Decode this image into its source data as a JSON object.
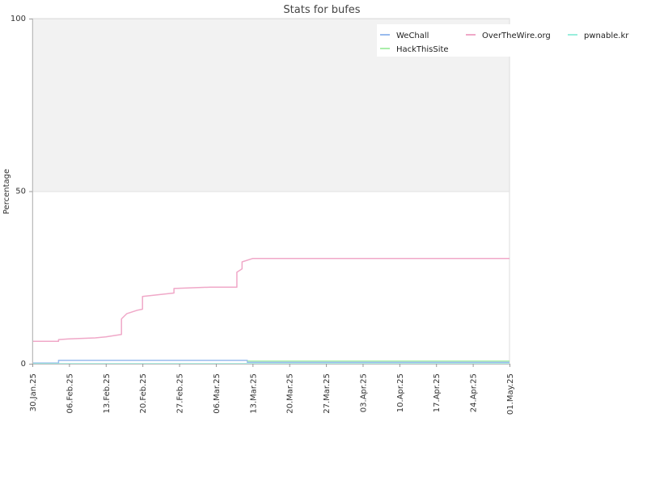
{
  "chart_data": {
    "type": "line",
    "title": "Stats for bufes",
    "xlabel": "",
    "ylabel": "Percentage",
    "ylim": [
      0,
      100
    ],
    "yticks": [
      0,
      50,
      100
    ],
    "xlim": [
      "2025-01-30",
      "2025-05-01"
    ],
    "xticks": [
      "30.Jan.25",
      "06.Feb.25",
      "13.Feb.25",
      "20.Feb.25",
      "27.Feb.25",
      "06.Mar.25",
      "13.Mar.25",
      "20.Mar.25",
      "27.Mar.25",
      "03.Apr.25",
      "10.Apr.25",
      "17.Apr.25",
      "24.Apr.25",
      "01.May.25"
    ],
    "grid": true,
    "shaded_band": [
      50,
      100
    ],
    "legend_position": "top-right",
    "series": [
      {
        "name": "WeChall",
        "color": "#99bbee",
        "points": [
          [
            "2025-01-30",
            0.2
          ],
          [
            "2025-02-04",
            0.2
          ],
          [
            "2025-02-04",
            1.0
          ],
          [
            "2025-03-12",
            1.0
          ],
          [
            "2025-03-12",
            0.4
          ],
          [
            "2025-05-01",
            0.4
          ]
        ]
      },
      {
        "name": "OverTheWire.org",
        "color": "#f0a8c8",
        "points": [
          [
            "2025-01-30",
            6.5
          ],
          [
            "2025-02-04",
            6.5
          ],
          [
            "2025-02-04",
            7.0
          ],
          [
            "2025-02-06",
            7.2
          ],
          [
            "2025-02-11",
            7.5
          ],
          [
            "2025-02-13",
            7.8
          ],
          [
            "2025-02-16",
            8.5
          ],
          [
            "2025-02-16",
            13.0
          ],
          [
            "2025-02-17",
            14.5
          ],
          [
            "2025-02-19",
            15.5
          ],
          [
            "2025-02-20",
            15.8
          ],
          [
            "2025-02-20",
            19.5
          ],
          [
            "2025-02-23",
            20.0
          ],
          [
            "2025-02-26",
            20.5
          ],
          [
            "2025-02-26",
            21.8
          ],
          [
            "2025-03-05",
            22.2
          ],
          [
            "2025-03-10",
            22.2
          ],
          [
            "2025-03-10",
            26.5
          ],
          [
            "2025-03-11",
            27.5
          ],
          [
            "2025-03-11",
            29.5
          ],
          [
            "2025-03-13",
            30.5
          ],
          [
            "2025-05-01",
            30.5
          ]
        ]
      },
      {
        "name": "pwnable.kr",
        "color": "#99eedd",
        "points": [
          [
            "2025-01-30",
            0.0
          ],
          [
            "2025-05-01",
            0.0
          ]
        ]
      },
      {
        "name": "HackThisSite",
        "color": "#aaeeaa",
        "points": [
          [
            "2025-03-12",
            0.8
          ],
          [
            "2025-05-01",
            0.8
          ]
        ]
      }
    ]
  }
}
